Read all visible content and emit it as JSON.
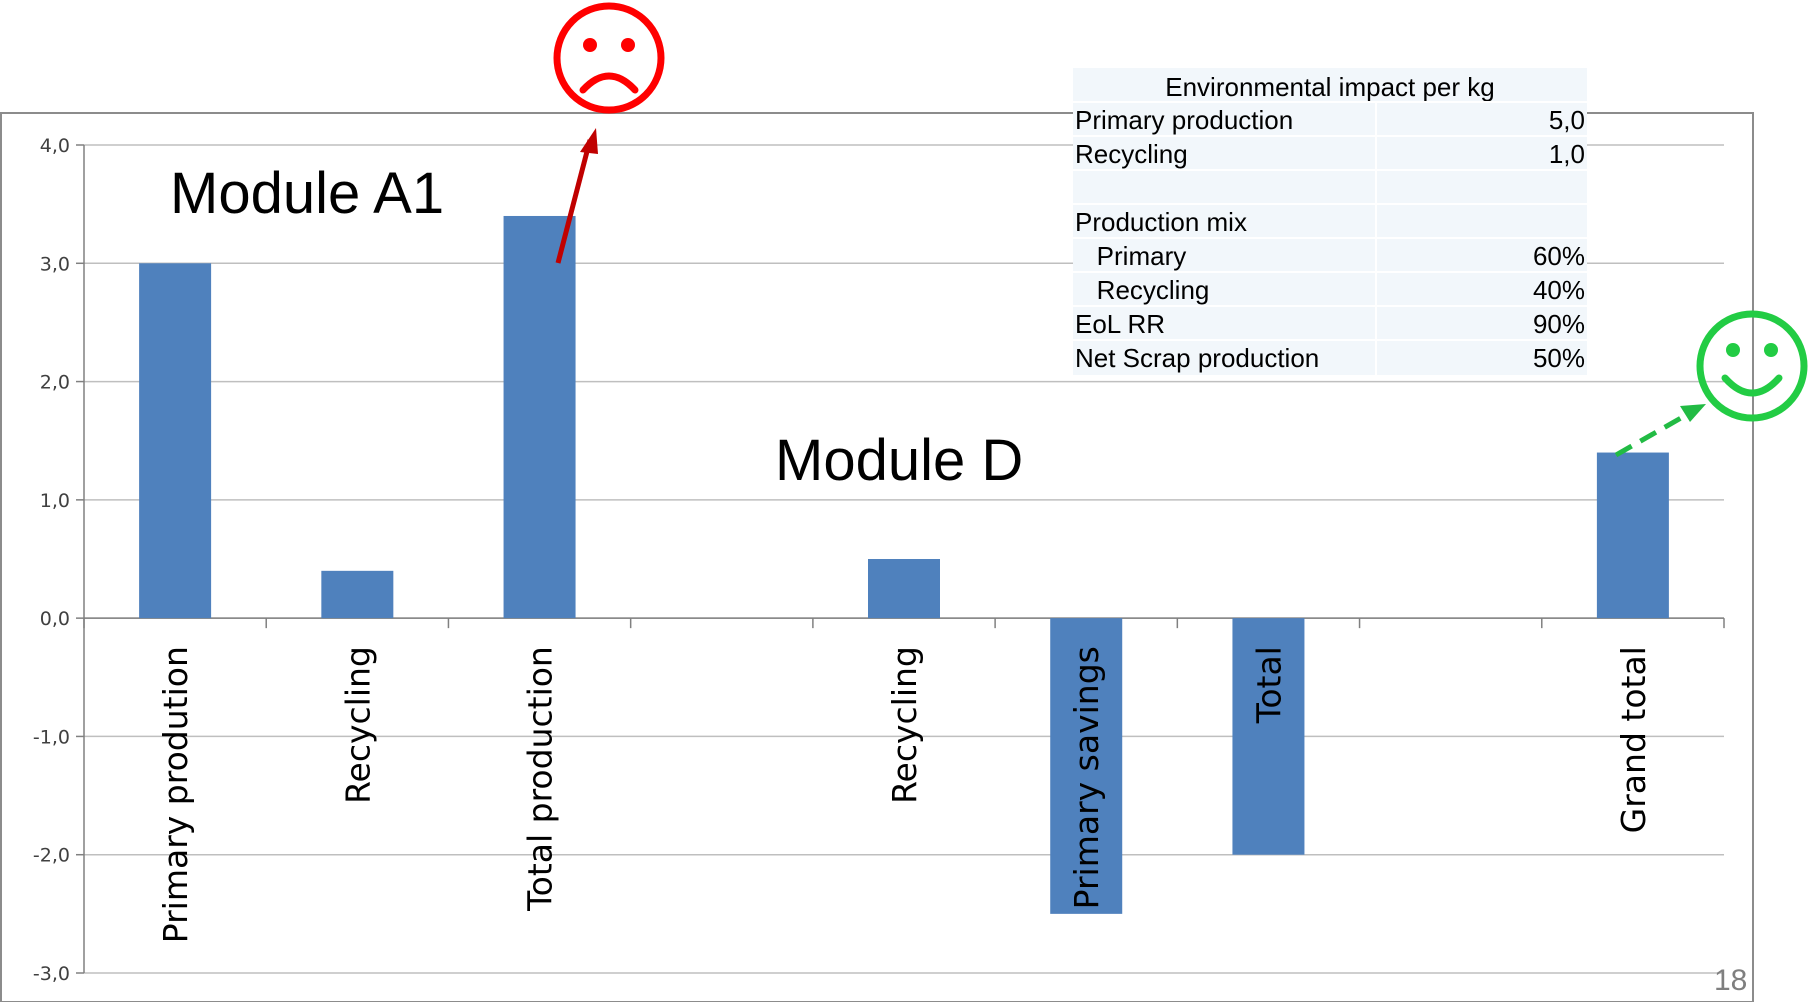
{
  "chart_data": {
    "type": "bar",
    "categories": [
      "Primary prodution",
      "Recycling",
      "Total production",
      "",
      "Recycling",
      "Primary savings",
      "Total",
      "",
      "Grand total"
    ],
    "values": [
      3.0,
      0.4,
      3.4,
      null,
      0.5,
      -2.5,
      -2.0,
      null,
      1.4
    ],
    "ylim": [
      -3.0,
      4.0
    ],
    "yticks": [
      "4,0",
      "3,0",
      "2,0",
      "1,0",
      "0,0",
      "-1,0",
      "-2,0",
      "-3,0"
    ],
    "ytick_values": [
      4,
      3,
      2,
      1,
      0,
      -1,
      -2,
      -3
    ],
    "bar_color": "#4f81bd",
    "grid": true,
    "annotations": {
      "module_a1": "Module A1",
      "module_d": "Module D"
    }
  },
  "table": {
    "title": "Environmental impact per kg",
    "rows": [
      {
        "label": "Primary production",
        "value": "5,0"
      },
      {
        "label": "Recycling",
        "value": "1,0"
      },
      {
        "label": "",
        "value": ""
      },
      {
        "label": "Production mix",
        "value": ""
      },
      {
        "label": "  Primary",
        "value": "60%"
      },
      {
        "label": "  Recycling",
        "value": "40%"
      },
      {
        "label": "EoL RR",
        "value": "90%"
      },
      {
        "label": "Net Scrap production",
        "value": "50%"
      }
    ],
    "background": "#f2f7fb"
  },
  "icons": {
    "sad_face": "sad-face-icon",
    "happy_face": "happy-face-icon",
    "sad_color": "#ff0000",
    "happy_color": "#22bb44",
    "up_arrow_color": "#c00000",
    "dashed_arrow_color": "#22bb44"
  },
  "page_number": "18"
}
